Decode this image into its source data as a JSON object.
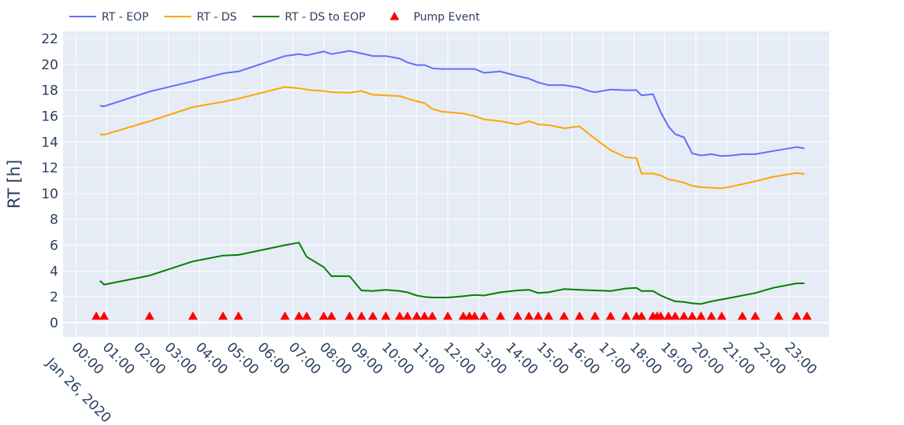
{
  "chart_data": {
    "type": "line",
    "title": "",
    "xlabel": "",
    "ylabel": "RT [h]",
    "x_range": [
      "00:00",
      "23:55"
    ],
    "ylim": [
      -1,
      22.5
    ],
    "y_ticks": [
      0,
      2,
      4,
      6,
      8,
      10,
      12,
      14,
      16,
      18,
      20,
      22
    ],
    "x_ticks": [
      {
        "t": "00:00",
        "label": "00:00"
      },
      {
        "t": "01:00",
        "label": "01:00"
      },
      {
        "t": "02:00",
        "label": "02:00"
      },
      {
        "t": "03:00",
        "label": "03:00"
      },
      {
        "t": "04:00",
        "label": "04:00"
      },
      {
        "t": "05:00",
        "label": "05:00"
      },
      {
        "t": "06:00",
        "label": "06:00"
      },
      {
        "t": "07:00",
        "label": "07:00"
      },
      {
        "t": "08:00",
        "label": "08:00"
      },
      {
        "t": "09:00",
        "label": "09:00"
      },
      {
        "t": "10:00",
        "label": "10:00"
      },
      {
        "t": "11:00",
        "label": "11:00"
      },
      {
        "t": "12:00",
        "label": "12:00"
      },
      {
        "t": "13:00",
        "label": "13:00"
      },
      {
        "t": "14:00",
        "label": "14:00"
      },
      {
        "t": "15:00",
        "label": "15:00"
      },
      {
        "t": "16:00",
        "label": "16:00"
      },
      {
        "t": "17:00",
        "label": "17:00"
      },
      {
        "t": "18:00",
        "label": "18:00"
      },
      {
        "t": "19:00",
        "label": "19:00"
      },
      {
        "t": "20:00",
        "label": "20:00"
      },
      {
        "t": "21:00",
        "label": "21:00"
      },
      {
        "t": "22:00",
        "label": "22:00"
      },
      {
        "t": "23:00",
        "label": "23:00"
      }
    ],
    "date_label": "Jan 26, 2020",
    "grid": true,
    "legend_position": "top-left, horizontal",
    "series": [
      {
        "name": "RT - EOP",
        "color": "#636efa",
        "style": "line",
        "points": [
          [
            "00:47",
            16.8
          ],
          [
            "00:55",
            16.75
          ],
          [
            "02:23",
            17.9
          ],
          [
            "03:47",
            18.7
          ],
          [
            "04:45",
            19.3
          ],
          [
            "05:15",
            19.45
          ],
          [
            "06:45",
            20.65
          ],
          [
            "07:12",
            20.8
          ],
          [
            "07:27",
            20.7
          ],
          [
            "08:00",
            21.0
          ],
          [
            "08:15",
            20.8
          ],
          [
            "08:50",
            21.05
          ],
          [
            "09:13",
            20.85
          ],
          [
            "09:35",
            20.65
          ],
          [
            "10:00",
            20.65
          ],
          [
            "10:27",
            20.45
          ],
          [
            "10:42",
            20.15
          ],
          [
            "11:00",
            19.95
          ],
          [
            "11:15",
            19.95
          ],
          [
            "11:30",
            19.7
          ],
          [
            "11:48",
            19.65
          ],
          [
            "12:30",
            19.65
          ],
          [
            "12:52",
            19.65
          ],
          [
            "13:10",
            19.35
          ],
          [
            "13:42",
            19.45
          ],
          [
            "14:15",
            19.1
          ],
          [
            "14:37",
            18.9
          ],
          [
            "14:55",
            18.6
          ],
          [
            "15:15",
            18.4
          ],
          [
            "15:45",
            18.4
          ],
          [
            "16:15",
            18.2
          ],
          [
            "16:32",
            17.95
          ],
          [
            "16:45",
            17.85
          ],
          [
            "17:15",
            18.05
          ],
          [
            "17:45",
            18.0
          ],
          [
            "18:05",
            18.0
          ],
          [
            "18:15",
            17.6
          ],
          [
            "18:37",
            17.7
          ],
          [
            "18:52",
            16.3
          ],
          [
            "19:07",
            15.2
          ],
          [
            "19:20",
            14.6
          ],
          [
            "19:37",
            14.35
          ],
          [
            "19:53",
            13.1
          ],
          [
            "20:10",
            12.95
          ],
          [
            "20:30",
            13.05
          ],
          [
            "20:50",
            12.9
          ],
          [
            "21:10",
            12.95
          ],
          [
            "21:30",
            13.05
          ],
          [
            "21:55",
            13.05
          ],
          [
            "22:30",
            13.3
          ],
          [
            "23:15",
            13.6
          ],
          [
            "23:30",
            13.5
          ]
        ]
      },
      {
        "name": "RT - DS",
        "color": "#ffa500",
        "style": "line",
        "points": [
          [
            "00:47",
            14.6
          ],
          [
            "00:55",
            14.55
          ],
          [
            "02:23",
            15.6
          ],
          [
            "03:47",
            16.7
          ],
          [
            "04:45",
            17.1
          ],
          [
            "05:15",
            17.35
          ],
          [
            "06:45",
            18.25
          ],
          [
            "07:12",
            18.15
          ],
          [
            "07:35",
            18.0
          ],
          [
            "08:00",
            17.95
          ],
          [
            "08:15",
            17.85
          ],
          [
            "08:50",
            17.8
          ],
          [
            "09:13",
            17.95
          ],
          [
            "09:35",
            17.65
          ],
          [
            "10:00",
            17.6
          ],
          [
            "10:27",
            17.55
          ],
          [
            "10:42",
            17.35
          ],
          [
            "11:00",
            17.15
          ],
          [
            "11:15",
            17.0
          ],
          [
            "11:30",
            16.55
          ],
          [
            "11:48",
            16.35
          ],
          [
            "12:30",
            16.2
          ],
          [
            "12:52",
            16.0
          ],
          [
            "13:10",
            15.75
          ],
          [
            "13:42",
            15.6
          ],
          [
            "14:15",
            15.35
          ],
          [
            "14:37",
            15.6
          ],
          [
            "14:55",
            15.35
          ],
          [
            "15:15",
            15.3
          ],
          [
            "15:45",
            15.05
          ],
          [
            "16:15",
            15.2
          ],
          [
            "16:45",
            14.25
          ],
          [
            "17:15",
            13.35
          ],
          [
            "17:45",
            12.8
          ],
          [
            "18:05",
            12.75
          ],
          [
            "18:15",
            11.55
          ],
          [
            "18:37",
            11.55
          ],
          [
            "18:52",
            11.4
          ],
          [
            "19:07",
            11.1
          ],
          [
            "19:20",
            11.0
          ],
          [
            "19:37",
            10.85
          ],
          [
            "19:53",
            10.6
          ],
          [
            "20:10",
            10.5
          ],
          [
            "20:30",
            10.45
          ],
          [
            "20:50",
            10.4
          ],
          [
            "21:10",
            10.55
          ],
          [
            "21:55",
            10.95
          ],
          [
            "22:30",
            11.3
          ],
          [
            "23:15",
            11.6
          ],
          [
            "23:30",
            11.5
          ]
        ]
      },
      {
        "name": "RT - DS to EOP",
        "color": "#008000",
        "style": "line",
        "points": [
          [
            "00:47",
            3.25
          ],
          [
            "00:55",
            2.95
          ],
          [
            "02:23",
            3.65
          ],
          [
            "03:47",
            4.75
          ],
          [
            "04:45",
            5.2
          ],
          [
            "05:15",
            5.25
          ],
          [
            "06:45",
            6.0
          ],
          [
            "07:12",
            6.2
          ],
          [
            "07:27",
            5.1
          ],
          [
            "08:00",
            4.3
          ],
          [
            "08:15",
            3.6
          ],
          [
            "08:50",
            3.6
          ],
          [
            "09:13",
            2.5
          ],
          [
            "09:35",
            2.45
          ],
          [
            "10:00",
            2.55
          ],
          [
            "10:27",
            2.45
          ],
          [
            "10:42",
            2.35
          ],
          [
            "11:00",
            2.1
          ],
          [
            "11:15",
            2.0
          ],
          [
            "11:30",
            1.95
          ],
          [
            "12:00",
            1.95
          ],
          [
            "12:30",
            2.05
          ],
          [
            "12:52",
            2.15
          ],
          [
            "13:10",
            2.1
          ],
          [
            "13:42",
            2.35
          ],
          [
            "14:15",
            2.5
          ],
          [
            "14:37",
            2.55
          ],
          [
            "14:55",
            2.3
          ],
          [
            "15:15",
            2.35
          ],
          [
            "15:45",
            2.6
          ],
          [
            "16:15",
            2.55
          ],
          [
            "16:45",
            2.5
          ],
          [
            "17:15",
            2.45
          ],
          [
            "17:45",
            2.65
          ],
          [
            "18:05",
            2.7
          ],
          [
            "18:15",
            2.45
          ],
          [
            "18:37",
            2.45
          ],
          [
            "18:52",
            2.1
          ],
          [
            "19:07",
            1.85
          ],
          [
            "19:20",
            1.65
          ],
          [
            "19:37",
            1.6
          ],
          [
            "19:53",
            1.5
          ],
          [
            "20:10",
            1.45
          ],
          [
            "20:30",
            1.65
          ],
          [
            "20:50",
            1.8
          ],
          [
            "21:10",
            1.95
          ],
          [
            "21:55",
            2.3
          ],
          [
            "22:30",
            2.7
          ],
          [
            "23:15",
            3.05
          ],
          [
            "23:30",
            3.05
          ]
        ]
      },
      {
        "name": "Pump Event",
        "color": "#ff0000",
        "style": "marker",
        "marker": "triangle-up",
        "points": [
          [
            "00:40",
            0.5
          ],
          [
            "00:55",
            0.5
          ],
          [
            "02:23",
            0.5
          ],
          [
            "03:47",
            0.5
          ],
          [
            "04:45",
            0.5
          ],
          [
            "05:15",
            0.5
          ],
          [
            "06:45",
            0.5
          ],
          [
            "07:12",
            0.5
          ],
          [
            "07:27",
            0.5
          ],
          [
            "08:00",
            0.5
          ],
          [
            "08:15",
            0.5
          ],
          [
            "08:50",
            0.5
          ],
          [
            "09:13",
            0.5
          ],
          [
            "09:35",
            0.5
          ],
          [
            "10:00",
            0.5
          ],
          [
            "10:27",
            0.5
          ],
          [
            "10:42",
            0.5
          ],
          [
            "11:00",
            0.5
          ],
          [
            "11:15",
            0.5
          ],
          [
            "11:30",
            0.5
          ],
          [
            "12:00",
            0.5
          ],
          [
            "12:30",
            0.5
          ],
          [
            "12:42",
            0.5
          ],
          [
            "12:52",
            0.5
          ],
          [
            "13:10",
            0.5
          ],
          [
            "13:42",
            0.5
          ],
          [
            "14:15",
            0.5
          ],
          [
            "14:37",
            0.5
          ],
          [
            "14:55",
            0.5
          ],
          [
            "15:15",
            0.5
          ],
          [
            "15:45",
            0.5
          ],
          [
            "16:15",
            0.5
          ],
          [
            "16:45",
            0.5
          ],
          [
            "17:15",
            0.5
          ],
          [
            "17:45",
            0.5
          ],
          [
            "18:05",
            0.5
          ],
          [
            "18:15",
            0.5
          ],
          [
            "18:37",
            0.5
          ],
          [
            "18:45",
            0.5
          ],
          [
            "18:52",
            0.5
          ],
          [
            "19:07",
            0.5
          ],
          [
            "19:20",
            0.5
          ],
          [
            "19:37",
            0.5
          ],
          [
            "19:53",
            0.5
          ],
          [
            "20:10",
            0.5
          ],
          [
            "20:30",
            0.5
          ],
          [
            "20:50",
            0.5
          ],
          [
            "21:30",
            0.5
          ],
          [
            "21:55",
            0.5
          ],
          [
            "22:40",
            0.5
          ],
          [
            "23:15",
            0.5
          ],
          [
            "23:35",
            0.5
          ]
        ]
      }
    ]
  }
}
